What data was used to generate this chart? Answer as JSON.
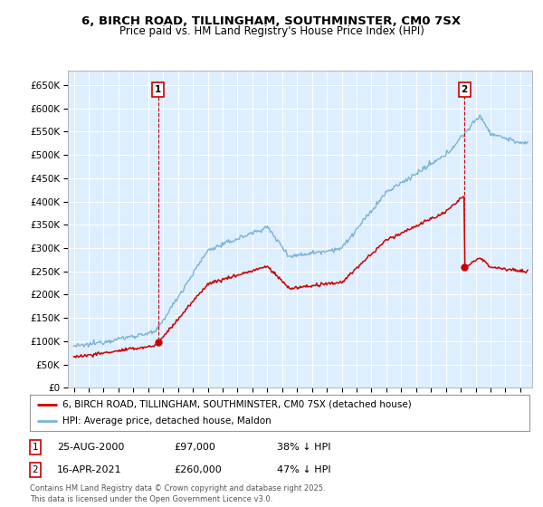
{
  "title_line1": "6, BIRCH ROAD, TILLINGHAM, SOUTHMINSTER, CM0 7SX",
  "title_line2": "Price paid vs. HM Land Registry's House Price Index (HPI)",
  "legend_label_red": "6, BIRCH ROAD, TILLINGHAM, SOUTHMINSTER, CM0 7SX (detached house)",
  "legend_label_blue": "HPI: Average price, detached house, Maldon",
  "annotation1_date": "25-AUG-2000",
  "annotation1_price": "£97,000",
  "annotation1_hpi": "38% ↓ HPI",
  "annotation2_date": "16-APR-2021",
  "annotation2_price": "£260,000",
  "annotation2_hpi": "47% ↓ HPI",
  "footer": "Contains HM Land Registry data © Crown copyright and database right 2025.\nThis data is licensed under the Open Government Licence v3.0.",
  "ylim": [
    0,
    680000
  ],
  "yticks": [
    0,
    50000,
    100000,
    150000,
    200000,
    250000,
    300000,
    350000,
    400000,
    450000,
    500000,
    550000,
    600000,
    650000
  ],
  "red_color": "#cc0000",
  "blue_color": "#7ab3d4",
  "plot_bg_color": "#ddeeff",
  "background_color": "#ffffff",
  "grid_color": "#ffffff"
}
